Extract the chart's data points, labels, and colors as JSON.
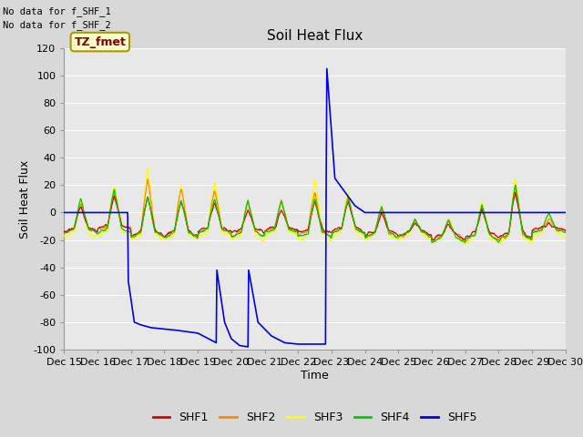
{
  "title": "Soil Heat Flux",
  "xlabel": "Time",
  "ylabel": "Soil Heat Flux",
  "annotations": [
    "No data for f_SHF_1",
    "No data for f_SHF_2"
  ],
  "box_label": "TZ_fmet",
  "ylim": [
    -100,
    120
  ],
  "xlim": [
    0,
    15
  ],
  "yticks": [
    -100,
    -80,
    -60,
    -40,
    -20,
    0,
    20,
    40,
    60,
    80,
    100,
    120
  ],
  "xtick_labels": [
    "Dec 15",
    "Dec 16",
    "Dec 17",
    "Dec 18",
    "Dec 19",
    "Dec 20",
    "Dec 21",
    "Dec 22",
    "Dec 23",
    "Dec 24",
    "Dec 25",
    "Dec 26",
    "Dec 27",
    "Dec 28",
    "Dec 29",
    "Dec 30"
  ],
  "bg_color": "#d8d8d8",
  "plot_bg_color": "#e8e8e8",
  "grid_color": "#ffffff",
  "legend_entries": [
    "SHF1",
    "SHF2",
    "SHF3",
    "SHF4",
    "SHF5"
  ],
  "line_colors": [
    "#dd0000",
    "#ff8800",
    "#ffff00",
    "#00cc00",
    "#0000ee"
  ],
  "title_fontsize": 11,
  "axis_fontsize": 9,
  "tick_fontsize": 8,
  "legend_fontsize": 9,
  "shf5_x": [
    0.0,
    1.9,
    1.92,
    2.1,
    2.3,
    2.6,
    3.0,
    3.4,
    4.0,
    4.55,
    4.57,
    4.8,
    5.0,
    5.25,
    5.5,
    5.52,
    5.8,
    6.2,
    6.6,
    7.0,
    7.5,
    7.82,
    7.84,
    7.86,
    8.1,
    8.4,
    8.7,
    9.0,
    10.0,
    11.0,
    12.0,
    13.0,
    14.0,
    15.0
  ],
  "shf5_y": [
    0.0,
    0.0,
    -50.0,
    -80.0,
    -82.0,
    -84.0,
    -85.0,
    -86.0,
    -88.0,
    -95.0,
    -42.0,
    -80.0,
    -92.0,
    -97.0,
    -98.0,
    -42.0,
    -80.0,
    -90.0,
    -95.0,
    -96.0,
    -96.0,
    -96.0,
    25.0,
    105.0,
    25.0,
    15.0,
    5.0,
    0.0,
    0.0,
    0.0,
    0.0,
    0.0,
    0.0,
    0.0
  ]
}
